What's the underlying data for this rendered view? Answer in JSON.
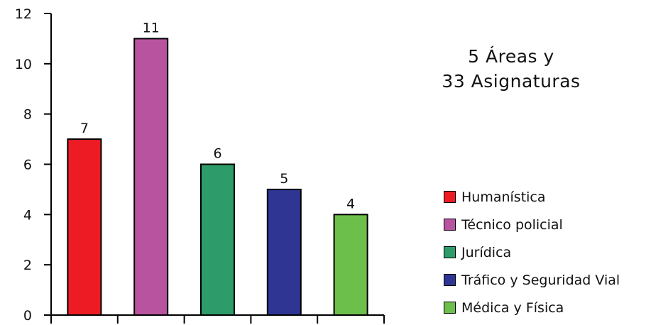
{
  "heading": {
    "line1": "5 Áreas y",
    "line2": "33 Asignaturas"
  },
  "chart_data": {
    "type": "bar",
    "categories": [
      "Humanística",
      "Técnico policial",
      "Jurídica",
      "Tráfico y Seguridad Vial",
      "Médica y Física"
    ],
    "values": [
      7,
      11,
      6,
      5,
      4
    ],
    "data_labels": [
      "7",
      "11",
      "6",
      "5",
      "4"
    ],
    "colors": [
      "#ed1c24",
      "#b853a0",
      "#2e9b6a",
      "#2e3592",
      "#6dbf4b"
    ],
    "ylim": [
      0,
      12
    ],
    "yticks": [
      "0",
      "2",
      "4",
      "6",
      "8",
      "10",
      "12"
    ],
    "grid": false,
    "legend_position": "right",
    "title": "",
    "xlabel": "",
    "ylabel": ""
  }
}
